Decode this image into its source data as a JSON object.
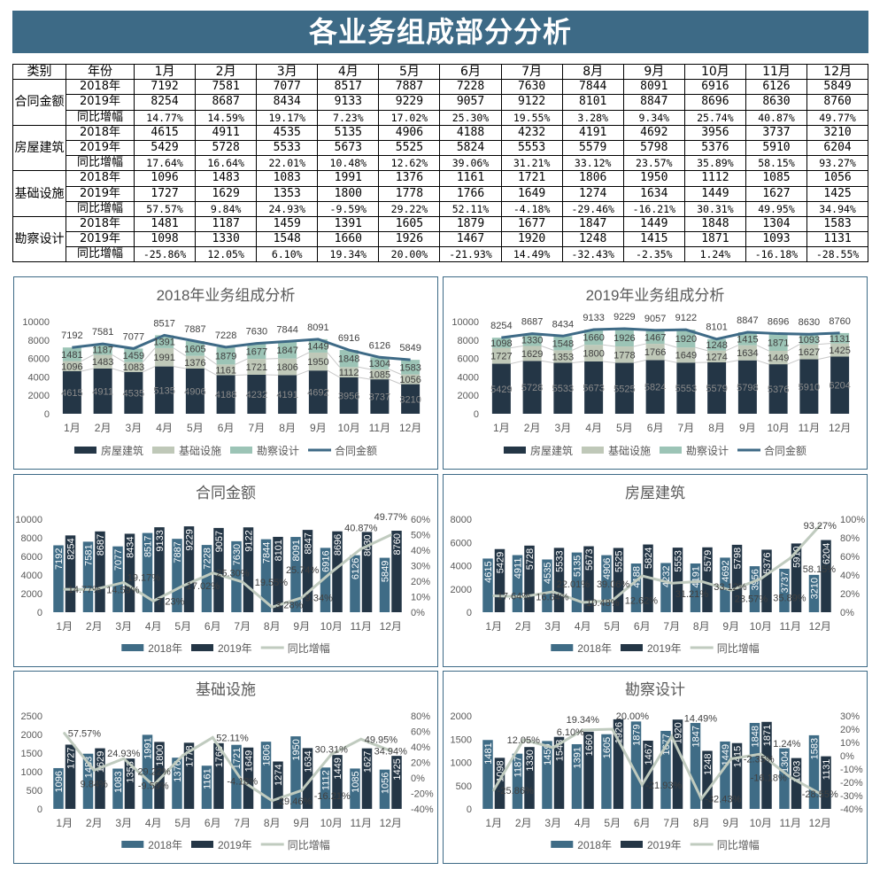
{
  "title": "各业务组成部分分析",
  "colors": {
    "title_bg": "#3d6a86",
    "bar_2018": "#3f6c86",
    "bar_2019": "#243646",
    "growth_line": "#c0cbbf",
    "stack_fangwu": "#243646",
    "stack_jichu": "#bfc8b8",
    "stack_kancha": "#9cc4b6",
    "total_line": "#3e6a86"
  },
  "table": {
    "headers": [
      "类别",
      "年份",
      "1月",
      "2月",
      "3月",
      "4月",
      "5月",
      "6月",
      "7月",
      "8月",
      "9月",
      "10月",
      "11月",
      "12月"
    ],
    "groups": [
      {
        "category": "合同金额",
        "rows": [
          {
            "label": "2018年",
            "values": [
              "7192",
              "7581",
              "7077",
              "8517",
              "7887",
              "7228",
              "7630",
              "7844",
              "8091",
              "6916",
              "6126",
              "5849"
            ]
          },
          {
            "label": "2019年",
            "values": [
              "8254",
              "8687",
              "8434",
              "9133",
              "9229",
              "9057",
              "9122",
              "8101",
              "8847",
              "8696",
              "8630",
              "8760"
            ]
          },
          {
            "label": "同比增幅",
            "values": [
              "14.77%",
              "14.59%",
              "19.17%",
              "7.23%",
              "17.02%",
              "25.30%",
              "19.55%",
              "3.28%",
              "9.34%",
              "25.74%",
              "40.87%",
              "49.77%"
            ]
          }
        ]
      },
      {
        "category": "房屋建筑",
        "rows": [
          {
            "label": "2018年",
            "values": [
              "4615",
              "4911",
              "4535",
              "5135",
              "4906",
              "4188",
              "4232",
              "4191",
              "4692",
              "3956",
              "3737",
              "3210"
            ]
          },
          {
            "label": "2019年",
            "values": [
              "5429",
              "5728",
              "5533",
              "5673",
              "5525",
              "5824",
              "5553",
              "5579",
              "5798",
              "5376",
              "5910",
              "6204"
            ]
          },
          {
            "label": "同比增幅",
            "values": [
              "17.64%",
              "16.64%",
              "22.01%",
              "10.48%",
              "12.62%",
              "39.06%",
              "31.21%",
              "33.12%",
              "23.57%",
              "35.89%",
              "58.15%",
              "93.27%"
            ]
          }
        ]
      },
      {
        "category": "基础设施",
        "rows": [
          {
            "label": "2018年",
            "values": [
              "1096",
              "1483",
              "1083",
              "1991",
              "1376",
              "1161",
              "1721",
              "1806",
              "1950",
              "1112",
              "1085",
              "1056"
            ]
          },
          {
            "label": "2019年",
            "values": [
              "1727",
              "1629",
              "1353",
              "1800",
              "1778",
              "1766",
              "1649",
              "1274",
              "1634",
              "1449",
              "1627",
              "1425"
            ]
          },
          {
            "label": "同比增幅",
            "values": [
              "57.57%",
              "9.84%",
              "24.93%",
              "-9.59%",
              "29.22%",
              "52.11%",
              "-4.18%",
              "-29.46%",
              "-16.21%",
              "30.31%",
              "49.95%",
              "34.94%"
            ]
          }
        ]
      },
      {
        "category": "勘察设计",
        "rows": [
          {
            "label": "2018年",
            "values": [
              "1481",
              "1187",
              "1459",
              "1391",
              "1605",
              "1879",
              "1677",
              "1847",
              "1449",
              "1848",
              "1304",
              "1583"
            ]
          },
          {
            "label": "2019年",
            "values": [
              "1098",
              "1330",
              "1548",
              "1660",
              "1926",
              "1467",
              "1920",
              "1248",
              "1415",
              "1871",
              "1093",
              "1131"
            ]
          },
          {
            "label": "同比增幅",
            "values": [
              "-25.86%",
              "12.05%",
              "6.10%",
              "19.34%",
              "20.00%",
              "-21.93%",
              "14.49%",
              "-32.43%",
              "-2.35%",
              "1.24%",
              "-16.18%",
              "-28.55%"
            ]
          }
        ]
      }
    ]
  },
  "chart_data": [
    {
      "type": "bar",
      "stacked": true,
      "title": "2018年业务组成分析",
      "categories": [
        "1月",
        "2月",
        "3月",
        "4月",
        "5月",
        "6月",
        "7月",
        "8月",
        "9月",
        "10月",
        "11月",
        "12月"
      ],
      "ylim": [
        0,
        10000
      ],
      "y_ticks": [
        "0",
        "2000",
        "4000",
        "6000",
        "8000",
        "10000"
      ],
      "grid": false,
      "legend": "bottom",
      "series": [
        {
          "name": "房屋建筑",
          "kind": "bar",
          "values": [
            4615,
            4911,
            4535,
            5135,
            4906,
            4188,
            4232,
            4191,
            4692,
            3956,
            3737,
            3210
          ]
        },
        {
          "name": "基础设施",
          "kind": "bar",
          "values": [
            1096,
            1483,
            1083,
            1991,
            1376,
            1161,
            1721,
            1806,
            1950,
            1112,
            1085,
            1056
          ]
        },
        {
          "name": "勘察设计",
          "kind": "bar",
          "values": [
            1481,
            1187,
            1459,
            1391,
            1605,
            1879,
            1677,
            1847,
            1449,
            1848,
            1304,
            1583
          ]
        },
        {
          "name": "合同金额",
          "kind": "line",
          "values": [
            7192,
            7581,
            7077,
            8517,
            7887,
            7228,
            7630,
            7844,
            8091,
            6916,
            6126,
            5849
          ]
        }
      ]
    },
    {
      "type": "bar",
      "stacked": true,
      "title": "2019年业务组成分析",
      "categories": [
        "1月",
        "2月",
        "3月",
        "4月",
        "5月",
        "6月",
        "7月",
        "8月",
        "9月",
        "10月",
        "11月",
        "12月"
      ],
      "ylim": [
        0,
        10000
      ],
      "y_ticks": [
        "0",
        "2000",
        "4000",
        "6000",
        "8000",
        "10000"
      ],
      "grid": false,
      "legend": "bottom",
      "series": [
        {
          "name": "房屋建筑",
          "kind": "bar",
          "values": [
            5429,
            5728,
            5533,
            5673,
            5525,
            5824,
            5553,
            5579,
            5798,
            5376,
            5910,
            6204
          ]
        },
        {
          "name": "基础设施",
          "kind": "bar",
          "values": [
            1727,
            1629,
            1353,
            1800,
            1778,
            1766,
            1649,
            1274,
            1634,
            1449,
            1627,
            1425
          ]
        },
        {
          "name": "勘察设计",
          "kind": "bar",
          "values": [
            1098,
            1330,
            1548,
            1660,
            1926,
            1467,
            1920,
            1248,
            1415,
            1871,
            1093,
            1131
          ]
        },
        {
          "name": "合同金额",
          "kind": "line",
          "values": [
            8254,
            8687,
            8434,
            9133,
            9229,
            9057,
            9122,
            8101,
            8847,
            8696,
            8630,
            8760
          ]
        }
      ]
    },
    {
      "type": "bar",
      "stacked": false,
      "title": "合同金额",
      "categories": [
        "1月",
        "2月",
        "3月",
        "4月",
        "5月",
        "6月",
        "7月",
        "8月",
        "9月",
        "10月",
        "11月",
        "12月"
      ],
      "ylim": [
        0,
        10000
      ],
      "y_ticks": [
        "0",
        "2000",
        "4000",
        "6000",
        "8000",
        "10000"
      ],
      "y2lim": [
        0,
        60
      ],
      "y2_ticks": [
        "0%",
        "10%",
        "20%",
        "30%",
        "40%",
        "50%",
        "60%"
      ],
      "grid": false,
      "legend": "bottom",
      "series": [
        {
          "name": "2018年",
          "kind": "bar",
          "values": [
            7192,
            7581,
            7077,
            8517,
            7887,
            7228,
            7630,
            7844,
            8091,
            6916,
            6126,
            5849
          ]
        },
        {
          "name": "2019年",
          "kind": "bar",
          "values": [
            8254,
            8687,
            8434,
            9133,
            9229,
            9057,
            9122,
            8101,
            8847,
            8696,
            8630,
            8760
          ]
        },
        {
          "name": "同比增幅",
          "kind": "line",
          "axis": "right",
          "values": [
            14.77,
            14.59,
            19.17,
            7.23,
            17.02,
            25.3,
            19.55,
            3.28,
            9.34,
            25.74,
            40.87,
            49.77
          ]
        }
      ]
    },
    {
      "type": "bar",
      "stacked": false,
      "title": "房屋建筑",
      "categories": [
        "1月",
        "2月",
        "3月",
        "4月",
        "5月",
        "6月",
        "7月",
        "8月",
        "9月",
        "10月",
        "11月",
        "12月"
      ],
      "ylim": [
        0,
        8000
      ],
      "y_ticks": [
        "0",
        "2000",
        "4000",
        "6000",
        "8000"
      ],
      "y2lim": [
        0,
        100
      ],
      "y2_ticks": [
        "0%",
        "20%",
        "40%",
        "60%",
        "80%",
        "100%"
      ],
      "grid": false,
      "legend": "bottom",
      "series": [
        {
          "name": "2018年",
          "kind": "bar",
          "values": [
            4615,
            4911,
            4535,
            5135,
            4906,
            4188,
            4232,
            4191,
            4692,
            3956,
            3737,
            3210
          ]
        },
        {
          "name": "2019年",
          "kind": "bar",
          "values": [
            5429,
            5728,
            5533,
            5673,
            5525,
            5824,
            5553,
            5579,
            5798,
            5376,
            5910,
            6204
          ]
        },
        {
          "name": "同比增幅",
          "kind": "line",
          "axis": "right",
          "values": [
            17.64,
            16.64,
            22.01,
            10.48,
            12.62,
            39.06,
            31.21,
            33.12,
            23.57,
            35.89,
            58.15,
            93.27
          ]
        }
      ]
    },
    {
      "type": "bar",
      "stacked": false,
      "title": "基础设施",
      "categories": [
        "1月",
        "2月",
        "3月",
        "4月",
        "5月",
        "6月",
        "7月",
        "8月",
        "9月",
        "10月",
        "11月",
        "12月"
      ],
      "ylim": [
        0,
        2500
      ],
      "y_ticks": [
        "0",
        "500",
        "1000",
        "1500",
        "2000",
        "2500"
      ],
      "y2lim": [
        -40,
        80
      ],
      "y2_ticks": [
        "-40%",
        "-20%",
        "0%",
        "20%",
        "40%",
        "60%",
        "80%"
      ],
      "grid": false,
      "legend": "bottom",
      "series": [
        {
          "name": "2018年",
          "kind": "bar",
          "values": [
            1096,
            1483,
            1083,
            1991,
            1376,
            1161,
            1721,
            1806,
            1950,
            1112,
            1085,
            1056
          ]
        },
        {
          "name": "2019年",
          "kind": "bar",
          "values": [
            1727,
            1629,
            1353,
            1800,
            1778,
            1766,
            1649,
            1274,
            1634,
            1449,
            1627,
            1425
          ]
        },
        {
          "name": "同比增幅",
          "kind": "line",
          "axis": "right",
          "values": [
            57.57,
            9.84,
            24.93,
            -9.59,
            29.22,
            52.11,
            -4.18,
            -29.46,
            -16.21,
            30.31,
            49.95,
            34.94
          ]
        }
      ]
    },
    {
      "type": "bar",
      "stacked": false,
      "title": "勘察设计",
      "categories": [
        "1月",
        "2月",
        "3月",
        "4月",
        "5月",
        "6月",
        "7月",
        "8月",
        "9月",
        "10月",
        "11月",
        "12月"
      ],
      "ylim": [
        0,
        2000
      ],
      "y_ticks": [
        "0",
        "500",
        "1000",
        "1500",
        "2000"
      ],
      "y2lim": [
        -40,
        30
      ],
      "y2_ticks": [
        "-40%",
        "-30%",
        "-20%",
        "-10%",
        "0%",
        "10%",
        "20%",
        "30%"
      ],
      "grid": false,
      "legend": "bottom",
      "series": [
        {
          "name": "2018年",
          "kind": "bar",
          "values": [
            1481,
            1187,
            1459,
            1391,
            1605,
            1879,
            1677,
            1847,
            1449,
            1848,
            1304,
            1583
          ]
        },
        {
          "name": "2019年",
          "kind": "bar",
          "values": [
            1098,
            1330,
            1548,
            1660,
            1926,
            1467,
            1920,
            1248,
            1415,
            1871,
            1093,
            1131
          ]
        },
        {
          "name": "同比增幅",
          "kind": "line",
          "axis": "right",
          "values": [
            -25.86,
            12.05,
            6.1,
            19.34,
            20.0,
            -21.93,
            14.49,
            -32.43,
            -2.35,
            1.24,
            -16.18,
            -28.55
          ]
        }
      ]
    }
  ]
}
